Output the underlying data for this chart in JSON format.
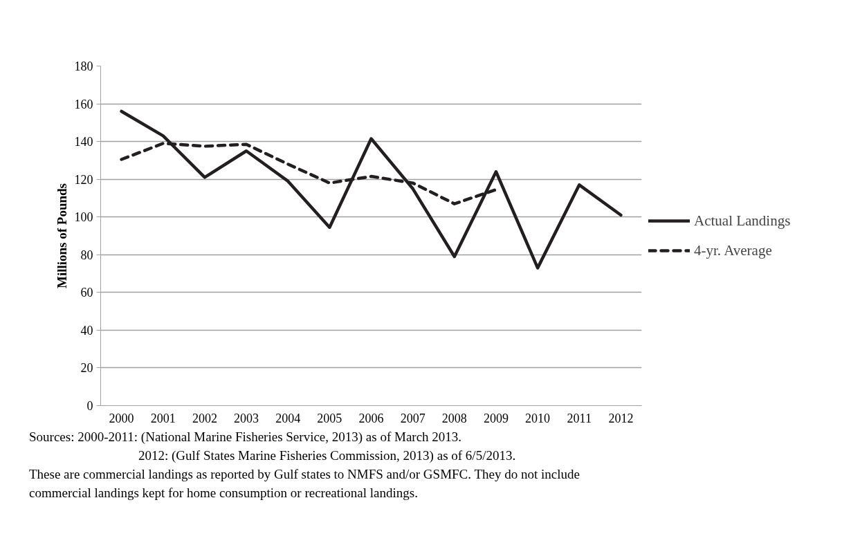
{
  "chart_data": {
    "type": "line",
    "categories": [
      "2000",
      "2001",
      "2002",
      "2003",
      "2004",
      "2005",
      "2006",
      "2007",
      "2008",
      "2009",
      "2010",
      "2011",
      "2012"
    ],
    "ylabel": "Millions of Pounds",
    "ylim": [
      0,
      180
    ],
    "yticks": [
      0,
      20,
      40,
      60,
      80,
      100,
      120,
      140,
      160,
      180
    ],
    "grid": "y",
    "legend": "right",
    "series": [
      {
        "name": "Actual Landings",
        "color": "#231f20",
        "line_style": "solid",
        "values": [
          156,
          143,
          121,
          135,
          119,
          94.5,
          141.5,
          115,
          79,
          124,
          73,
          117,
          101
        ]
      },
      {
        "name": "4-yr. Average",
        "color": "#231f20",
        "line_style": "dashed",
        "values": [
          130.5,
          139,
          137.5,
          138.5,
          128,
          118,
          121.5,
          118,
          107,
          114.5,
          null,
          null,
          null
        ]
      }
    ],
    "annotations": [
      "Sources: 2000-2011: (National Marine Fisheries Service, 2013) as of March 2013.",
      "2012: (Gulf States Marine Fisheries Commission, 2013) as of 6/5/2013.",
      "These are commercial landings  as reported by Gulf states to NMFS and/or GSMFC. They do not include",
      "commercial landings kept for home consumption or recreational landings."
    ]
  }
}
